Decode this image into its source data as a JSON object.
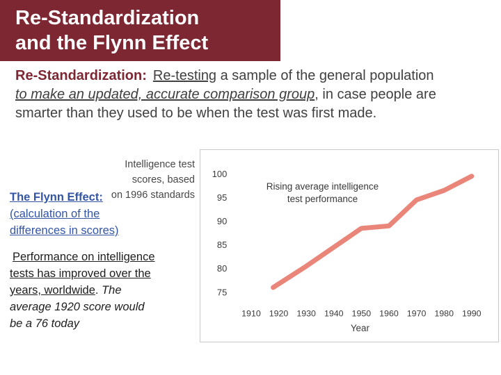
{
  "slide": {
    "title_line1": "Re-Standardization",
    "title_line2": "and the Flynn Effect"
  },
  "paragraph": {
    "lead": "Re-Standardization:",
    "seg_retesting": "Re-testing",
    "seg_middle": " a sample of the general population ",
    "seg_comparison": "to make an updated, accurate comparison group",
    "seg_tail": ", in case people are smarter than they used to be when the test was first made."
  },
  "flynn": {
    "heading": "The Flynn Effect:",
    "sub1": "(calculation of the",
    "sub2": "differences in scores)",
    "body_underlined": "Performance on intelligence tests has improved over the years, worldwide",
    "body_period": ". ",
    "body_italic": "The average 1920 score would be a 76 today"
  },
  "chart": {
    "side_label_lines": [
      "Intelligence test",
      "scores, based",
      "on 1996 standards"
    ],
    "annotation_line1": "Rising average intelligence",
    "annotation_line2": "test performance"
  },
  "chart_data": {
    "type": "line",
    "title": "Intelligence test scores, based on 1996 standards",
    "annotation": "Rising average intelligence test performance",
    "xlabel": "Year",
    "ylabel": "",
    "x": [
      1918,
      1930,
      1940,
      1950,
      1960,
      1970,
      1980,
      1990
    ],
    "y": [
      76,
      80.5,
      84.5,
      88.5,
      89,
      94.5,
      96.5,
      99.5
    ],
    "xticks": [
      1910,
      1920,
      1930,
      1940,
      1950,
      1960,
      1970,
      1980,
      1990
    ],
    "yticks": [
      75,
      80,
      85,
      90,
      95,
      100
    ],
    "xlim": [
      1903,
      1996
    ],
    "ylim": [
      73,
      103
    ],
    "grid": false,
    "legend": "none",
    "line_color": "#ea8579"
  },
  "colors": {
    "banner_maroon": "#7d2733",
    "body_text": "#404040",
    "flynn_blue": "#3355a4",
    "chart_line_salmon": "#ea8579",
    "chart_border": "#c9c9c9"
  }
}
